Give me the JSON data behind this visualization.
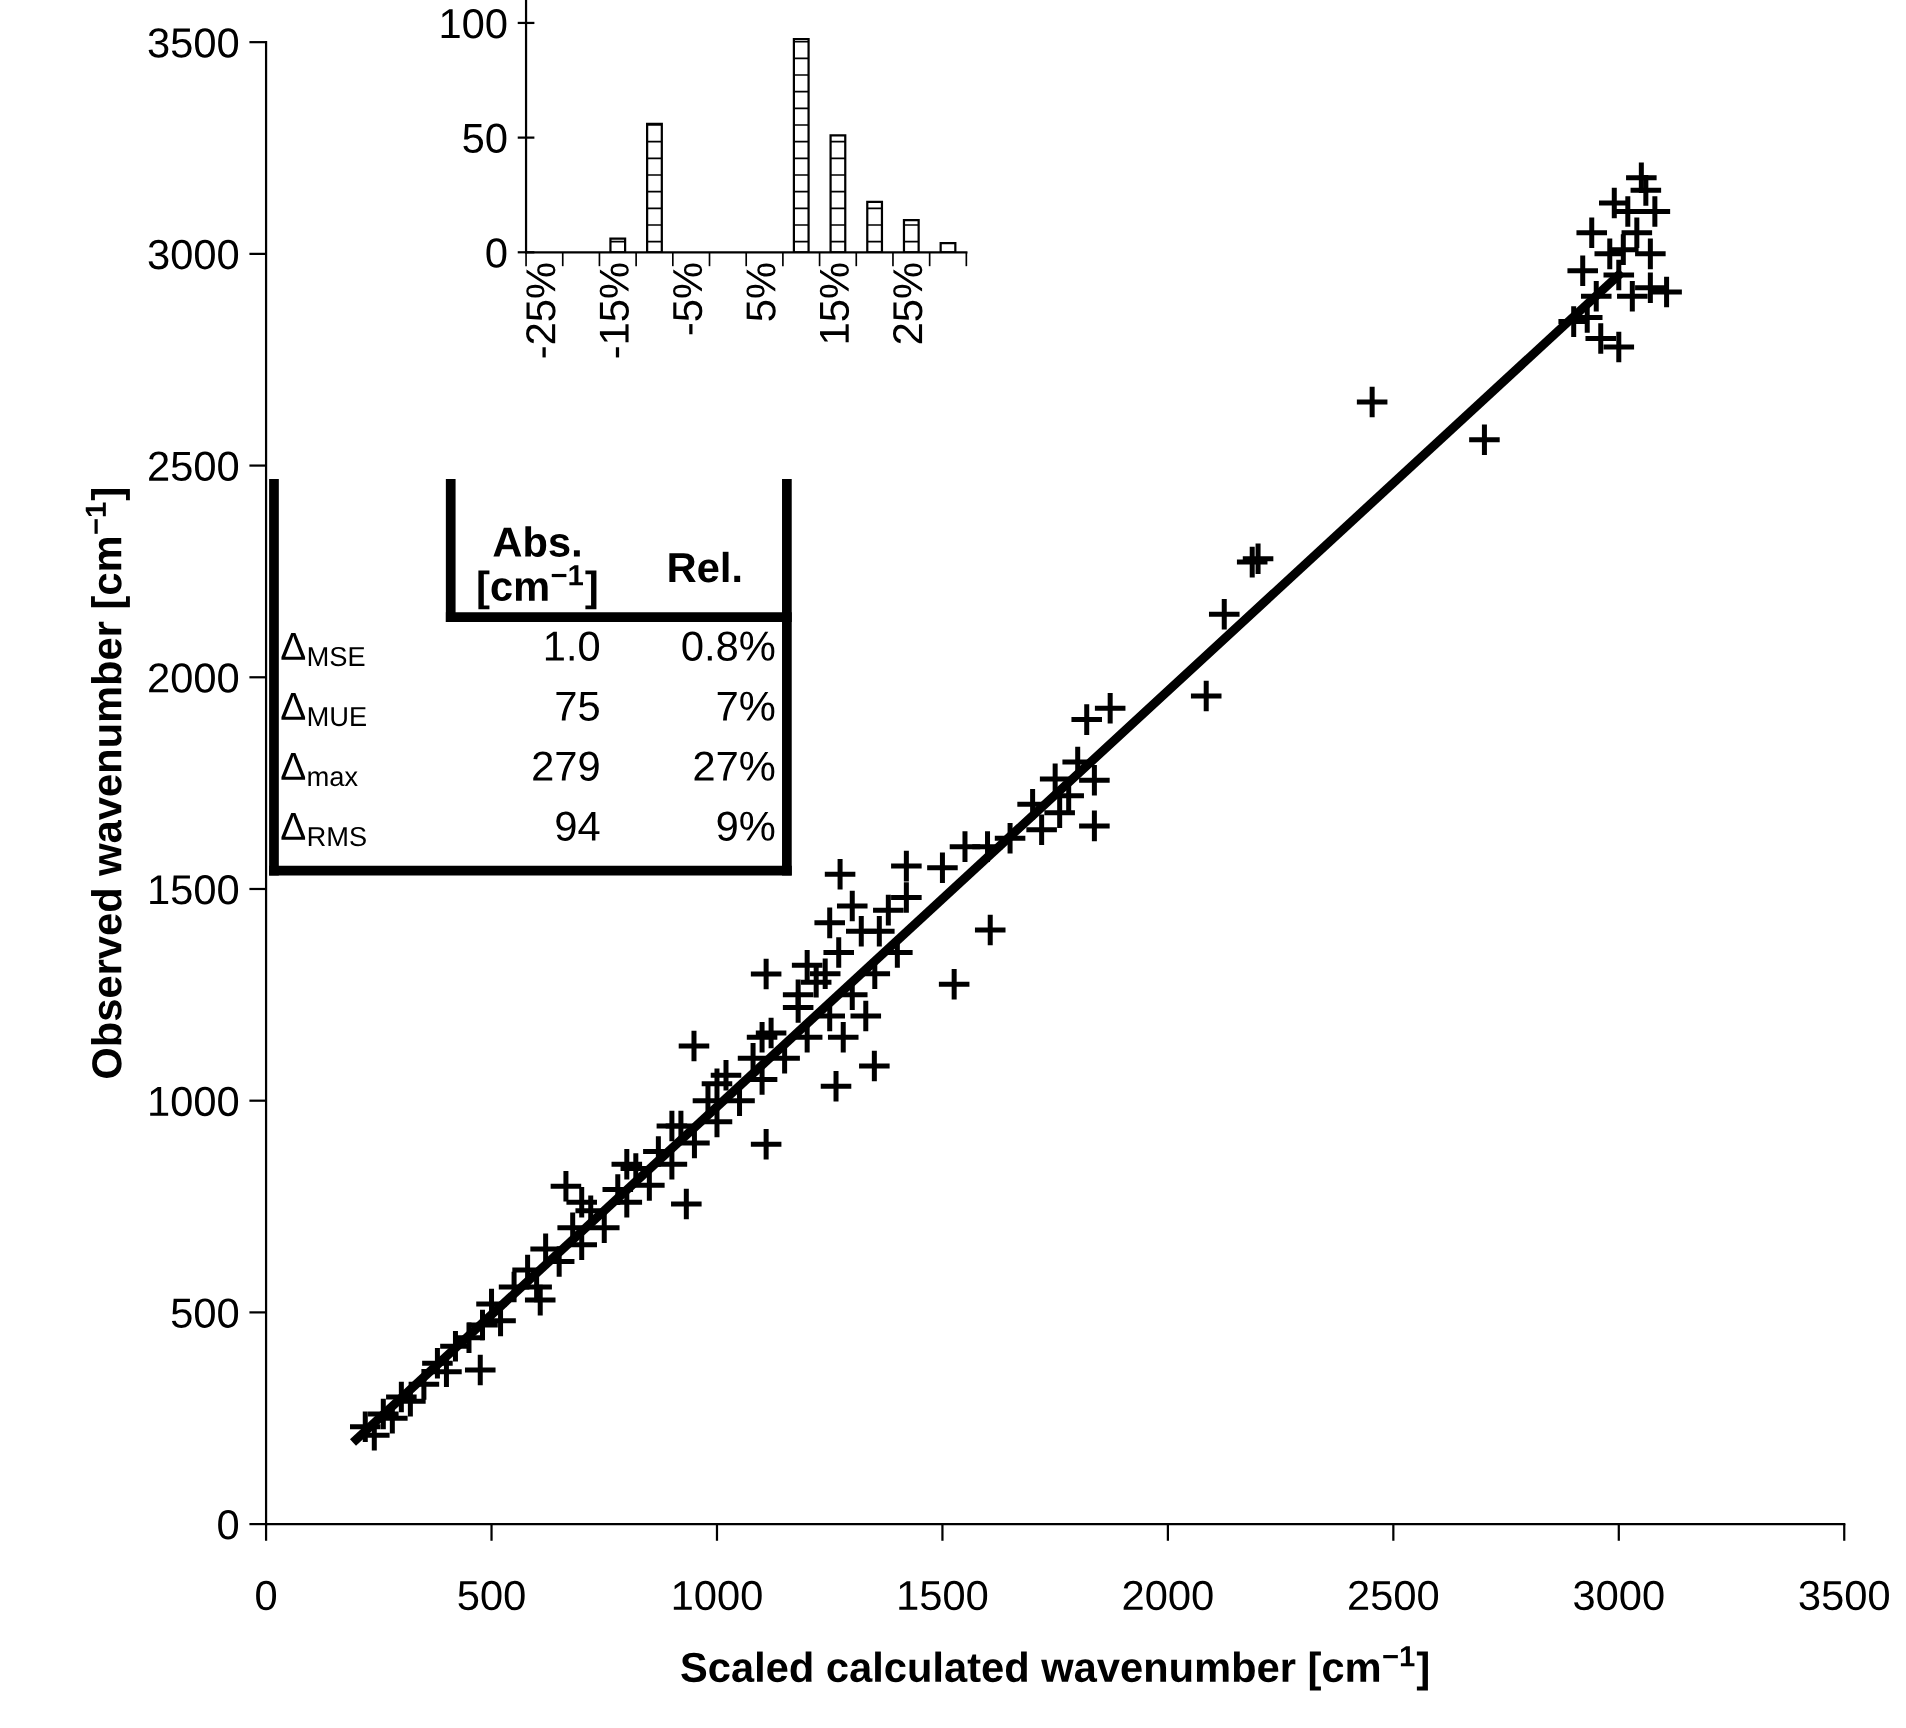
{
  "chart_data": [
    {
      "type": "scatter",
      "xlabel": "Scaled calculated wavenumber [cm$^{−1}$]",
      "ylabel": "Observed wavenumber [cm$^{−1}$]",
      "xlim": [
        0,
        3500
      ],
      "xticks": [
        0,
        500,
        1000,
        1500,
        2000,
        2500,
        3000,
        3500
      ],
      "ylim": [
        0,
        3500
      ],
      "yticks": [
        0,
        500,
        1000,
        1500,
        2000,
        2500,
        3000,
        3500
      ],
      "grid": false,
      "legend": false,
      "series": [
        {
          "type": "scatter",
          "color": "#000000",
          "marker": "cross",
          "x": [
            220,
            240,
            260,
            280,
            300,
            320,
            350,
            380,
            400,
            420,
            450,
            480,
            500,
            520,
            550,
            580,
            600,
            620,
            650,
            680,
            700,
            720,
            750,
            780,
            800,
            820,
            850,
            870,
            900,
            920,
            950,
            980,
            1000,
            1020,
            1050,
            1080,
            1100,
            1120,
            1150,
            1180,
            1200,
            1220,
            1250,
            1270,
            1300,
            1320,
            1350,
            1380,
            1400,
            1420,
            1250,
            1200,
            1300,
            1330,
            1280,
            1360,
            1240,
            1180,
            1100,
            1000,
            900,
            800,
            700,
            665,
            949,
            1109,
            1273,
            1420,
            475,
            608,
            932,
            1109,
            1264,
            1349,
            1526,
            1606,
            1500,
            1550,
            1600,
            1650,
            1700,
            1720,
            1750,
            1780,
            1800,
            1820,
            1760,
            1837,
            1837,
            1872,
            2085,
            2125,
            2187,
            2200,
            2453,
            2702,
            2900,
            2920,
            2930,
            2940,
            2950,
            2960,
            2980,
            2990,
            3000,
            3000,
            3010,
            3020,
            3030,
            3040,
            3050,
            3060,
            3070,
            3070,
            3080,
            3106
          ],
          "values": [
            230,
            210,
            260,
            250,
            300,
            290,
            330,
            380,
            360,
            420,
            440,
            470,
            520,
            480,
            560,
            600,
            560,
            650,
            620,
            700,
            660,
            740,
            700,
            790,
            760,
            840,
            800,
            880,
            850,
            940,
            900,
            1000,
            950,
            1060,
            1000,
            1100,
            1050,
            1160,
            1100,
            1220,
            1150,
            1280,
            1200,
            1350,
            1250,
            1400,
            1300,
            1450,
            1350,
            1480,
            1420,
            1320,
            1460,
            1200,
            1150,
            1400,
            1300,
            1250,
            1150,
            1040,
            940,
            850,
            760,
            798,
            1129,
            1299,
            1535,
            1554,
            364,
            529,
            756,
            897,
            1034,
            1082,
            1275,
            1403,
            1550,
            1600,
            1600,
            1620,
            1700,
            1640,
            1760,
            1720,
            1800,
            1900,
            1680,
            1757,
            1649,
            1927,
            1956,
            2149,
            2272,
            2280,
            2650,
            2561,
            2840,
            2960,
            2850,
            3050,
            2900,
            2800,
            3000,
            3120,
            2950,
            2780,
            3010,
            3100,
            2900,
            3050,
            3180,
            3150,
            3000,
            2920,
            3100,
            2910
          ]
        },
        {
          "type": "line",
          "color": "#000000",
          "x": [
            200,
            3000
          ],
          "values": [
            200,
            2950
          ]
        }
      ],
      "annotations": [
        "Abs.\n[cm$^{−1}$]",
        "Rel.",
        "Δ$_{MSE}$",
        "1.0",
        "0.8%",
        "Δ$_{MUE}$",
        "75",
        "7%",
        "Δ$_{max}$",
        "279",
        "27%",
        "Δ$_{RMS}$",
        "94",
        "9%"
      ]
    },
    {
      "type": "bar",
      "categories": [
        "-25%",
        null,
        "-15%",
        null,
        "-5%",
        null,
        "5%",
        null,
        "15%",
        null,
        "25%",
        null
      ],
      "values": [
        0,
        0,
        6,
        56,
        null,
        null,
        null,
        93,
        51,
        22,
        14,
        4
      ],
      "color": "#000000",
      "ylim": [
        0,
        110
      ],
      "yticks": [
        0,
        50,
        100
      ],
      "grid": false
    }
  ]
}
